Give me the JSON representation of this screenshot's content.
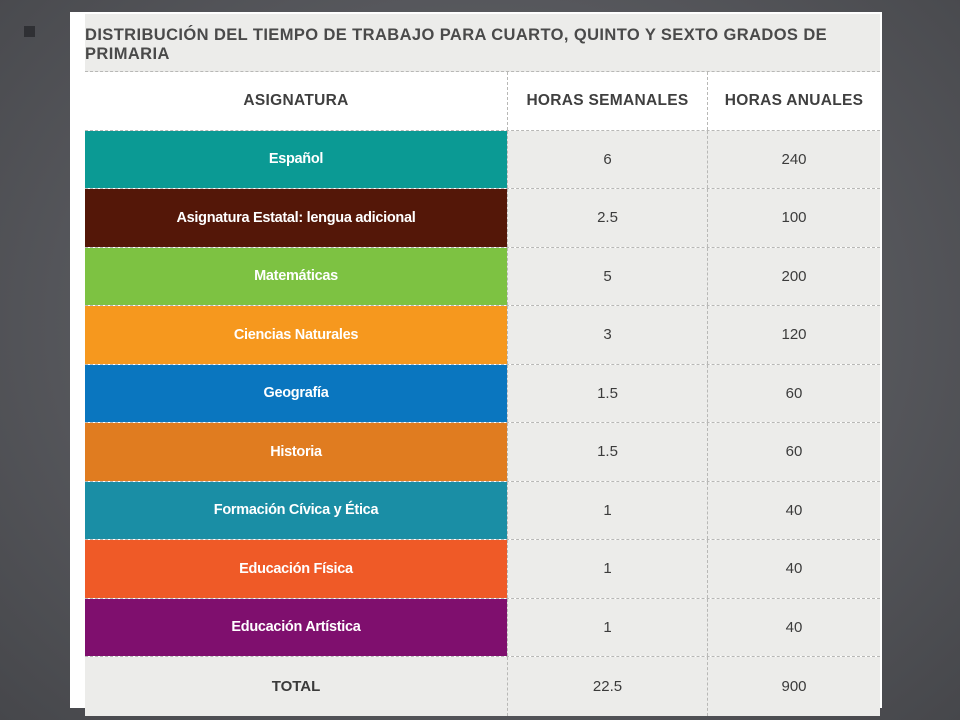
{
  "table": {
    "title": "DISTRIBUCIÓN DEL TIEMPO DE TRABAJO PARA CUARTO, QUINTO Y SEXTO GRADOS DE PRIMARIA",
    "headers": [
      "ASIGNATURA",
      "HORAS SEMANALES",
      "HORAS ANUALES"
    ],
    "rows": [
      {
        "subject": "Español",
        "weekly": "6",
        "annual": "240",
        "color": "#0b9a94"
      },
      {
        "subject": "Asignatura Estatal: lengua adicional",
        "weekly": "2.5",
        "annual": "100",
        "color": "#541708"
      },
      {
        "subject": "Matemáticas",
        "weekly": "5",
        "annual": "200",
        "color": "#7dc242"
      },
      {
        "subject": "Ciencias Naturales",
        "weekly": "3",
        "annual": "120",
        "color": "#f6981e"
      },
      {
        "subject": "Geografía",
        "weekly": "1.5",
        "annual": "60",
        "color": "#0a76bf"
      },
      {
        "subject": "Historia",
        "weekly": "1.5",
        "annual": "60",
        "color": "#e07c20"
      },
      {
        "subject": "Formación Cívica y Ética",
        "weekly": "1",
        "annual": "40",
        "color": "#1a8ea5"
      },
      {
        "subject": "Educación Física",
        "weekly": "1",
        "annual": "40",
        "color": "#ef5a27"
      },
      {
        "subject": "Educación Artística",
        "weekly": "1",
        "annual": "40",
        "color": "#7f0f6e"
      }
    ],
    "total": {
      "label": "TOTAL",
      "weekly": "22.5",
      "annual": "900"
    }
  }
}
